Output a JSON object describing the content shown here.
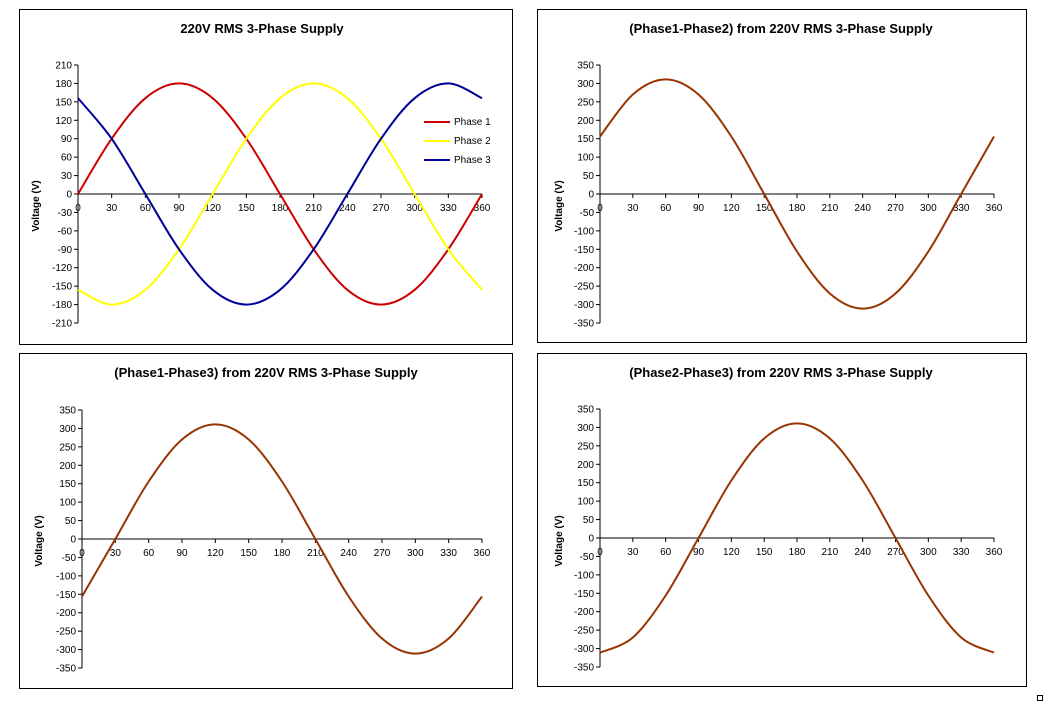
{
  "chart_data": [
    {
      "type": "line",
      "title": "220V RMS 3-Phase Supply",
      "xlabel": "",
      "ylabel": "Voltage (V)",
      "xlim": [
        0,
        360
      ],
      "ylim": [
        -210,
        210
      ],
      "x_ticks": [
        0,
        30,
        60,
        90,
        120,
        150,
        180,
        210,
        240,
        270,
        300,
        330,
        360
      ],
      "y_ticks": [
        -210,
        -180,
        -150,
        -120,
        -90,
        -60,
        -30,
        0,
        30,
        60,
        90,
        120,
        150,
        180,
        210
      ],
      "legend_position": "right",
      "x": [
        0,
        30,
        60,
        90,
        120,
        150,
        180,
        210,
        240,
        270,
        300,
        330,
        360
      ],
      "series": [
        {
          "name": "Phase 1",
          "color": "#cc0000",
          "values": [
            0,
            90,
            156,
            180,
            156,
            90,
            0,
            -90,
            -156,
            -180,
            -156,
            -90,
            0
          ]
        },
        {
          "name": "Phase 2",
          "color": "#ffff00",
          "values": [
            -156,
            -180,
            -156,
            -90,
            0,
            90,
            156,
            180,
            156,
            90,
            0,
            -90,
            -156
          ]
        },
        {
          "name": "Phase 3",
          "color": "#000099",
          "values": [
            156,
            90,
            0,
            -90,
            -156,
            -180,
            -156,
            -90,
            0,
            90,
            156,
            180,
            156
          ]
        }
      ]
    },
    {
      "type": "line",
      "title": "(Phase1-Phase2) from 220V RMS 3-Phase Supply",
      "xlabel": "",
      "ylabel": "Voltage (V)",
      "xlim": [
        0,
        360
      ],
      "ylim": [
        -350,
        350
      ],
      "x_ticks": [
        0,
        30,
        60,
        90,
        120,
        150,
        180,
        210,
        240,
        270,
        300,
        330,
        360
      ],
      "y_ticks": [
        -350,
        -300,
        -250,
        -200,
        -150,
        -100,
        -50,
        0,
        50,
        100,
        150,
        200,
        250,
        300,
        350
      ],
      "x": [
        0,
        30,
        60,
        90,
        120,
        150,
        180,
        210,
        240,
        270,
        300,
        330,
        360
      ],
      "series": [
        {
          "name": "Phase1-Phase2",
          "color": "#993300",
          "values": [
            156,
            270,
            311,
            270,
            156,
            0,
            -156,
            -270,
            -311,
            -270,
            -156,
            0,
            156
          ]
        }
      ]
    },
    {
      "type": "line",
      "title": "(Phase1-Phase3) from 220V RMS 3-Phase Supply",
      "xlabel": "",
      "ylabel": "Voltage (V)",
      "xlim": [
        0,
        360
      ],
      "ylim": [
        -350,
        350
      ],
      "x_ticks": [
        0,
        30,
        60,
        90,
        120,
        150,
        180,
        210,
        240,
        270,
        300,
        330,
        360
      ],
      "y_ticks": [
        -350,
        -300,
        -250,
        -200,
        -150,
        -100,
        -50,
        0,
        50,
        100,
        150,
        200,
        250,
        300,
        350
      ],
      "x": [
        0,
        30,
        60,
        90,
        120,
        150,
        180,
        210,
        240,
        270,
        300,
        330,
        360
      ],
      "series": [
        {
          "name": "Phase1-Phase3",
          "color": "#993300",
          "values": [
            -156,
            0,
            156,
            270,
            311,
            270,
            156,
            0,
            -156,
            -270,
            -311,
            -270,
            -156
          ]
        }
      ]
    },
    {
      "type": "line",
      "title": "(Phase2-Phase3) from 220V RMS 3-Phase Supply",
      "xlabel": "",
      "ylabel": "Voltage (V)",
      "xlim": [
        0,
        360
      ],
      "ylim": [
        -350,
        350
      ],
      "x_ticks": [
        0,
        30,
        60,
        90,
        120,
        150,
        180,
        210,
        240,
        270,
        300,
        330,
        360
      ],
      "y_ticks": [
        -350,
        -300,
        -250,
        -200,
        -150,
        -100,
        -50,
        0,
        50,
        100,
        150,
        200,
        250,
        300,
        350
      ],
      "x": [
        0,
        30,
        60,
        90,
        120,
        150,
        180,
        210,
        240,
        270,
        300,
        330,
        360
      ],
      "series": [
        {
          "name": "Phase2-Phase3",
          "color": "#993300",
          "values": [
            -311,
            -270,
            -156,
            0,
            156,
            270,
            311,
            270,
            156,
            0,
            -156,
            -270,
            -311
          ]
        }
      ]
    }
  ]
}
